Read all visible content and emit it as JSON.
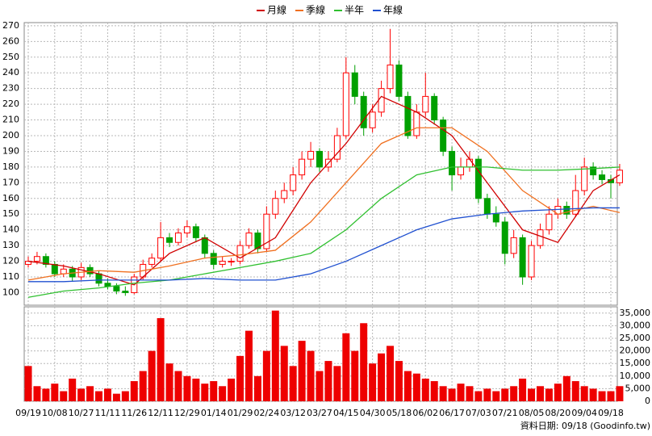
{
  "chart_data": [
    {
      "type": "candlestick",
      "legend": [
        "月線",
        "季線",
        "半年",
        "年線"
      ],
      "categories": [
        "09/19",
        null,
        null,
        "10/08",
        null,
        null,
        "10/27",
        null,
        null,
        "11/11",
        null,
        null,
        "11/26",
        null,
        null,
        "12/11",
        null,
        null,
        "12/29",
        null,
        null,
        "01/14",
        null,
        null,
        "01/29",
        null,
        null,
        "02/24",
        null,
        null,
        "03/12",
        null,
        null,
        "03/27",
        null,
        null,
        "04/15",
        null,
        null,
        "04/30",
        null,
        null,
        "05/18",
        null,
        null,
        "06/02",
        null,
        null,
        "06/17",
        null,
        null,
        "07/03",
        null,
        null,
        "07/21",
        null,
        null,
        "08/05",
        null,
        null,
        "08/20",
        null,
        null,
        "09/04",
        null,
        null,
        "09/18",
        null
      ],
      "open": [
        118,
        120,
        123,
        118,
        112,
        115,
        110,
        116,
        112,
        106,
        104,
        101,
        100,
        110,
        118,
        122,
        135,
        132,
        138,
        142,
        135,
        125,
        118,
        120,
        120,
        130,
        138,
        128,
        150,
        160,
        165,
        175,
        185,
        190,
        180,
        185,
        200,
        240,
        225,
        205,
        215,
        230,
        245,
        225,
        200,
        215,
        225,
        210,
        190,
        175,
        180,
        185,
        160,
        150,
        145,
        125,
        135,
        110,
        130,
        140,
        150,
        155,
        150,
        165,
        180,
        175,
        172,
        170
      ],
      "high": [
        123,
        126,
        125,
        120,
        118,
        117,
        119,
        118,
        114,
        109,
        106,
        104,
        112,
        121,
        125,
        145,
        138,
        141,
        146,
        144,
        137,
        127,
        123,
        122,
        133,
        141,
        140,
        155,
        165,
        170,
        180,
        190,
        196,
        192,
        190,
        205,
        250,
        245,
        228,
        220,
        235,
        268,
        248,
        228,
        220,
        240,
        227,
        212,
        193,
        186,
        190,
        187,
        163,
        155,
        148,
        140,
        137,
        133,
        144,
        155,
        160,
        158,
        175,
        186,
        183,
        178,
        175,
        182
      ],
      "low": [
        116,
        118,
        116,
        110,
        110,
        107,
        108,
        110,
        104,
        102,
        99,
        98,
        99,
        108,
        116,
        120,
        129,
        130,
        135,
        132,
        122,
        115,
        116,
        117,
        118,
        128,
        125,
        126,
        147,
        157,
        162,
        172,
        180,
        177,
        177,
        183,
        198,
        220,
        200,
        202,
        212,
        227,
        222,
        198,
        198,
        212,
        207,
        187,
        165,
        172,
        177,
        157,
        147,
        142,
        118,
        122,
        105,
        108,
        128,
        137,
        147,
        147,
        148,
        162,
        172,
        169,
        160,
        168
      ],
      "close": [
        120,
        123,
        118,
        112,
        115,
        110,
        116,
        112,
        106,
        104,
        101,
        100,
        110,
        118,
        122,
        135,
        132,
        138,
        142,
        135,
        125,
        118,
        120,
        120,
        130,
        138,
        128,
        150,
        160,
        165,
        175,
        185,
        190,
        180,
        185,
        200,
        240,
        225,
        205,
        215,
        230,
        245,
        225,
        200,
        215,
        225,
        210,
        190,
        175,
        180,
        185,
        160,
        150,
        145,
        125,
        135,
        110,
        130,
        140,
        150,
        155,
        150,
        165,
        180,
        175,
        172,
        170,
        178
      ],
      "up_color": "#ff0000",
      "down_color": "#00a000",
      "series": [
        {
          "name": "月線",
          "color": "#d00000",
          "x": [
            0,
            4,
            8,
            12,
            16,
            20,
            24,
            28,
            32,
            36,
            40,
            44,
            48,
            52,
            56,
            60,
            64,
            67
          ],
          "values": [
            120,
            117,
            112,
            105,
            125,
            135,
            122,
            135,
            170,
            195,
            225,
            215,
            200,
            170,
            140,
            132,
            165,
            175
          ]
        },
        {
          "name": "季線",
          "color": "#f07020",
          "x": [
            0,
            4,
            8,
            12,
            16,
            20,
            24,
            28,
            32,
            36,
            40,
            44,
            48,
            52,
            56,
            60,
            64,
            67
          ],
          "values": [
            108,
            112,
            114,
            113,
            117,
            122,
            124,
            127,
            145,
            170,
            195,
            205,
            205,
            190,
            165,
            150,
            155,
            151
          ]
        },
        {
          "name": "半年",
          "color": "#30c030",
          "x": [
            0,
            4,
            8,
            12,
            16,
            20,
            24,
            28,
            32,
            36,
            40,
            44,
            48,
            52,
            56,
            60,
            64,
            67
          ],
          "values": [
            97,
            101,
            103,
            106,
            108,
            112,
            116,
            120,
            125,
            140,
            160,
            175,
            180,
            180,
            178,
            178,
            179,
            180
          ]
        },
        {
          "name": "年線",
          "color": "#2050d0",
          "x": [
            0,
            4,
            8,
            12,
            16,
            20,
            24,
            28,
            32,
            36,
            40,
            44,
            48,
            52,
            56,
            60,
            64,
            67
          ],
          "values": [
            107,
            107,
            108,
            108,
            108,
            109,
            108,
            108,
            112,
            120,
            130,
            140,
            147,
            150,
            152,
            153,
            154,
            154
          ]
        }
      ],
      "ylim": [
        92,
        272
      ],
      "yticks": [
        100,
        110,
        120,
        130,
        140,
        150,
        160,
        170,
        180,
        190,
        200,
        210,
        220,
        230,
        240,
        250,
        260,
        270
      ],
      "grid": true
    },
    {
      "type": "bar",
      "color": "#ee0000",
      "values": [
        14000,
        6000,
        5000,
        7000,
        4000,
        9000,
        5000,
        6000,
        4000,
        5000,
        3000,
        4000,
        8000,
        12000,
        20000,
        33000,
        15000,
        12000,
        10000,
        9000,
        7000,
        8000,
        6000,
        9000,
        18000,
        28000,
        10000,
        20000,
        36000,
        22000,
        14000,
        24000,
        20000,
        12000,
        16000,
        14000,
        27000,
        20000,
        31000,
        15000,
        19000,
        22000,
        16000,
        12000,
        11000,
        9000,
        8000,
        6000,
        5000,
        7000,
        6000,
        4000,
        5000,
        4000,
        5000,
        6000,
        9000,
        5000,
        6000,
        5000,
        7000,
        10000,
        8000,
        6000,
        5000,
        4000,
        4000,
        6000
      ],
      "ylim": [
        0,
        37500
      ],
      "yticks": [
        0,
        {
          "value": 5000,
          "label": "5,000"
        },
        {
          "value": 10000,
          "label": "10,000"
        },
        {
          "value": 15000,
          "label": "15,000"
        },
        {
          "value": 20000,
          "label": "20,000"
        },
        {
          "value": 25000,
          "label": "25,000"
        },
        {
          "value": 30000,
          "label": "30,000"
        },
        {
          "value": 35000,
          "label": "35,000"
        }
      ],
      "grid": true,
      "note": "資料日期: 09/18  (Goodinfo.tw)"
    }
  ]
}
